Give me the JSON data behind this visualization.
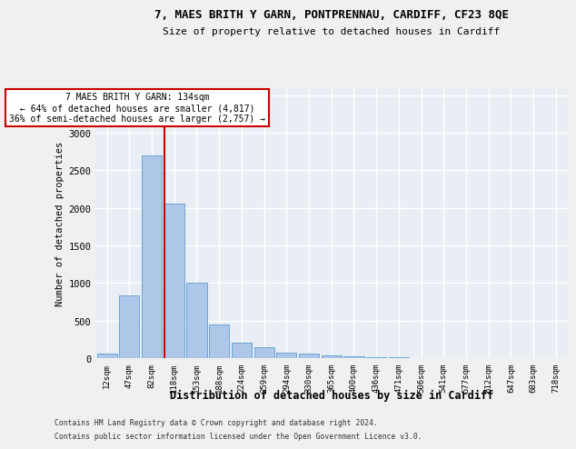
{
  "title1": "7, MAES BRITH Y GARN, PONTPRENNAU, CARDIFF, CF23 8QE",
  "title2": "Size of property relative to detached houses in Cardiff",
  "xlabel": "Distribution of detached houses by size in Cardiff",
  "ylabel": "Number of detached properties",
  "categories": [
    "12sqm",
    "47sqm",
    "82sqm",
    "118sqm",
    "153sqm",
    "188sqm",
    "224sqm",
    "259sqm",
    "294sqm",
    "330sqm",
    "365sqm",
    "400sqm",
    "436sqm",
    "471sqm",
    "506sqm",
    "541sqm",
    "577sqm",
    "612sqm",
    "647sqm",
    "683sqm",
    "718sqm"
  ],
  "values": [
    58,
    835,
    2700,
    2060,
    1010,
    450,
    205,
    140,
    72,
    58,
    38,
    20,
    8,
    8,
    5,
    3,
    1,
    1,
    0,
    0,
    0
  ],
  "bar_color": "#aec6e8",
  "bar_edge_color": "#5a9fd4",
  "vline_color": "#cc0000",
  "vline_xidx": 2.55,
  "annotation_line1": "7 MAES BRITH Y GARN: 134sqm",
  "annotation_line2": "← 64% of detached houses are smaller (4,817)",
  "annotation_line3": "36% of semi-detached houses are larger (2,757) →",
  "ylim_max": 3600,
  "yticks": [
    0,
    500,
    1000,
    1500,
    2000,
    2500,
    3000,
    3500
  ],
  "bg_color": "#e8eef4",
  "grid_color": "#ffffff",
  "fig_bg": "#f0f0f0",
  "footnote_line1": "Contains HM Land Registry data © Crown copyright and database right 2024.",
  "footnote_line2": "Contains public sector information licensed under the Open Government Licence v3.0."
}
